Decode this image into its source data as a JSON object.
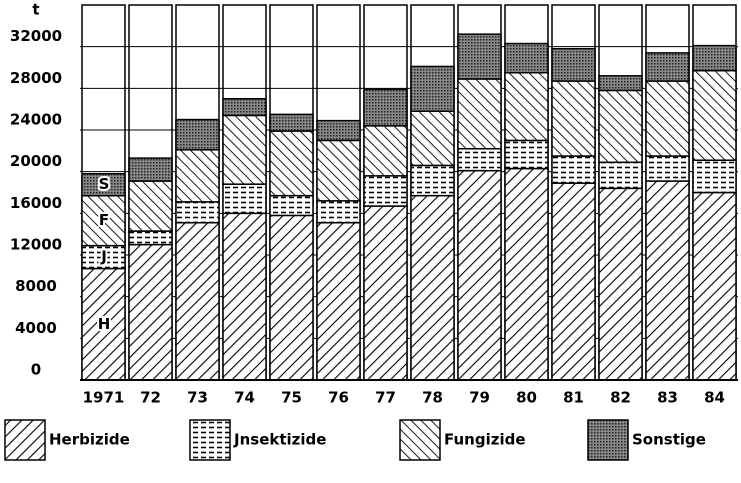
{
  "chart_data": {
    "type": "stacked_bar",
    "y_unit": "t",
    "categories": [
      "1971",
      "72",
      "73",
      "74",
      "75",
      "76",
      "77",
      "78",
      "79",
      "80",
      "81",
      "82",
      "83",
      "84"
    ],
    "series": [
      {
        "name": "Herbizide",
        "pattern": "diag",
        "color": "#000000",
        "values": [
          10700,
          13000,
          15100,
          16000,
          15800,
          15100,
          16700,
          17700,
          20100,
          20300,
          18900,
          18400,
          19100,
          18000
        ]
      },
      {
        "name": "Jnsektizide",
        "pattern": "dash",
        "color": "#000000",
        "values": [
          2200,
          1300,
          2000,
          2800,
          1900,
          2100,
          2900,
          2900,
          2100,
          2700,
          2600,
          2500,
          2400,
          3100
        ]
      },
      {
        "name": "Fungizide",
        "pattern": "backdiag",
        "color": "#000000",
        "values": [
          4800,
          4800,
          5000,
          6600,
          6200,
          5800,
          4800,
          5200,
          6700,
          6500,
          7200,
          6900,
          7200,
          8600
        ]
      },
      {
        "name": "Sonstige",
        "pattern": "dots",
        "color": "#000000",
        "values": [
          2100,
          2200,
          2900,
          1600,
          1600,
          1900,
          3500,
          4300,
          4300,
          2800,
          3100,
          1400,
          2700,
          2400
        ]
      }
    ],
    "inner_labels": [
      "H",
      "J",
      "F",
      "S"
    ],
    "ylim": [
      0,
      36000
    ],
    "yticks": [
      0,
      4000,
      8000,
      12000,
      16000,
      20000,
      24000,
      28000,
      32000
    ],
    "grid": true
  }
}
